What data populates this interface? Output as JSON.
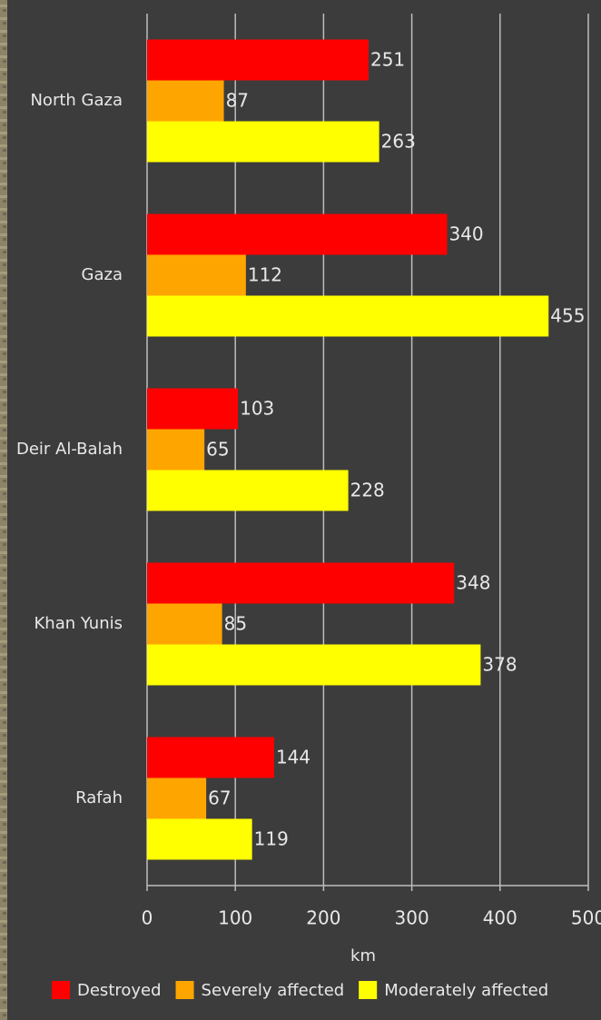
{
  "chart_data": {
    "type": "bar",
    "orientation": "horizontal",
    "categories": [
      "North Gaza",
      "Gaza",
      "Deir Al-Balah",
      "Khan Yunis",
      "Rafah"
    ],
    "series": [
      {
        "name": "Destroyed",
        "color": "#ff0000",
        "values": [
          251,
          340,
          103,
          348,
          144
        ]
      },
      {
        "name": "Severely affected",
        "color": "#ffa500",
        "values": [
          87,
          112,
          65,
          85,
          67
        ]
      },
      {
        "name": "Moderately affected",
        "color": "#ffff00",
        "values": [
          263,
          455,
          228,
          378,
          119
        ]
      }
    ],
    "xlabel": "km",
    "xlim": [
      0,
      500
    ],
    "xticks": [
      0,
      100,
      200,
      300,
      400,
      500
    ],
    "grid": true,
    "legend": "bottom"
  }
}
